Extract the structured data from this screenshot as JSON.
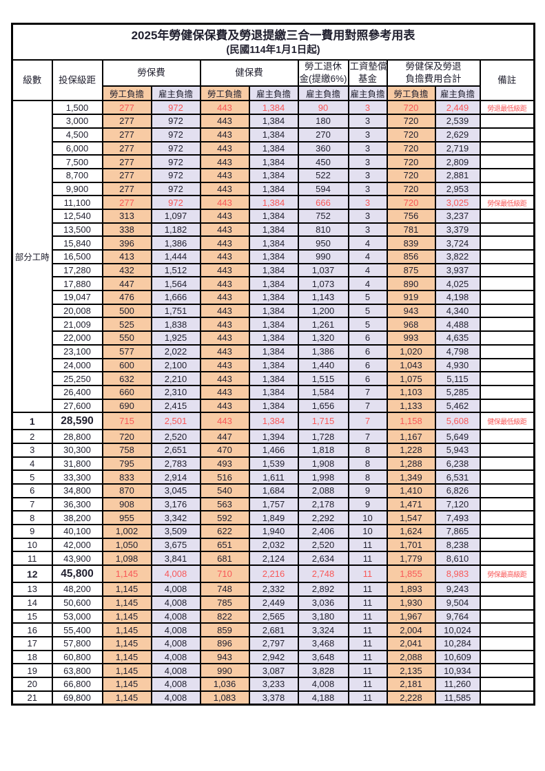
{
  "title": "2025年勞健保保費及勞退提繳三合一費用對照參考用表",
  "subtitle": "(民國114年1月1日起)",
  "colors": {
    "employee_bg": "#f8cba4",
    "employer_bg": "#e3e0f0",
    "red_text": "#f85757",
    "border": "#000000"
  },
  "header": {
    "level": "級數",
    "bracket": "投保級距",
    "labor_insurance": "勞保費",
    "health_insurance": "健保費",
    "pension_line1": "勞工退休",
    "pension_line2": "金(提繳6%)",
    "wage_fund_line1": "工資墊償",
    "wage_fund_line2": "基金",
    "total_line1": "勞健保及勞退",
    "total_line2": "負擔費用合計",
    "remark": "備註",
    "employee": "勞工負擔",
    "employer": "雇主負擔"
  },
  "part_time_label": "部分工時",
  "rows": [
    {
      "l": "",
      "b": "1,500",
      "v": [
        "277",
        "972",
        "443",
        "1,384",
        "90",
        "3",
        "720",
        "2,449"
      ],
      "r": "勞退最低級距",
      "s": "red"
    },
    {
      "l": "",
      "b": "3,000",
      "v": [
        "277",
        "972",
        "443",
        "1,384",
        "180",
        "3",
        "720",
        "2,539"
      ],
      "r": "",
      "s": ""
    },
    {
      "l": "",
      "b": "4,500",
      "v": [
        "277",
        "972",
        "443",
        "1,384",
        "270",
        "3",
        "720",
        "2,629"
      ],
      "r": "",
      "s": ""
    },
    {
      "l": "",
      "b": "6,000",
      "v": [
        "277",
        "972",
        "443",
        "1,384",
        "360",
        "3",
        "720",
        "2,719"
      ],
      "r": "",
      "s": ""
    },
    {
      "l": "",
      "b": "7,500",
      "v": [
        "277",
        "972",
        "443",
        "1,384",
        "450",
        "3",
        "720",
        "2,809"
      ],
      "r": "",
      "s": ""
    },
    {
      "l": "",
      "b": "8,700",
      "v": [
        "277",
        "972",
        "443",
        "1,384",
        "522",
        "3",
        "720",
        "2,881"
      ],
      "r": "",
      "s": ""
    },
    {
      "l": "",
      "b": "9,900",
      "v": [
        "277",
        "972",
        "443",
        "1,384",
        "594",
        "3",
        "720",
        "2,953"
      ],
      "r": "",
      "s": ""
    },
    {
      "l": "",
      "b": "11,100",
      "v": [
        "277",
        "972",
        "443",
        "1,384",
        "666",
        "3",
        "720",
        "3,025"
      ],
      "r": "勞保最低級距",
      "s": "red"
    },
    {
      "l": "",
      "b": "12,540",
      "v": [
        "313",
        "1,097",
        "443",
        "1,384",
        "752",
        "3",
        "756",
        "3,237"
      ],
      "r": "",
      "s": ""
    },
    {
      "l": "",
      "b": "13,500",
      "v": [
        "338",
        "1,182",
        "443",
        "1,384",
        "810",
        "3",
        "781",
        "3,379"
      ],
      "r": "",
      "s": ""
    },
    {
      "l": "",
      "b": "15,840",
      "v": [
        "396",
        "1,386",
        "443",
        "1,384",
        "950",
        "4",
        "839",
        "3,724"
      ],
      "r": "",
      "s": ""
    },
    {
      "l": "",
      "b": "16,500",
      "v": [
        "413",
        "1,444",
        "443",
        "1,384",
        "990",
        "4",
        "856",
        "3,822"
      ],
      "r": "",
      "s": ""
    },
    {
      "l": "",
      "b": "17,280",
      "v": [
        "432",
        "1,512",
        "443",
        "1,384",
        "1,037",
        "4",
        "875",
        "3,937"
      ],
      "r": "",
      "s": ""
    },
    {
      "l": "",
      "b": "17,880",
      "v": [
        "447",
        "1,564",
        "443",
        "1,384",
        "1,073",
        "4",
        "890",
        "4,025"
      ],
      "r": "",
      "s": ""
    },
    {
      "l": "",
      "b": "19,047",
      "v": [
        "476",
        "1,666",
        "443",
        "1,384",
        "1,143",
        "5",
        "919",
        "4,198"
      ],
      "r": "",
      "s": ""
    },
    {
      "l": "",
      "b": "20,008",
      "v": [
        "500",
        "1,751",
        "443",
        "1,384",
        "1,200",
        "5",
        "943",
        "4,340"
      ],
      "r": "",
      "s": ""
    },
    {
      "l": "",
      "b": "21,009",
      "v": [
        "525",
        "1,838",
        "443",
        "1,384",
        "1,261",
        "5",
        "968",
        "4,488"
      ],
      "r": "",
      "s": ""
    },
    {
      "l": "",
      "b": "22,000",
      "v": [
        "550",
        "1,925",
        "443",
        "1,384",
        "1,320",
        "6",
        "993",
        "4,635"
      ],
      "r": "",
      "s": ""
    },
    {
      "l": "",
      "b": "23,100",
      "v": [
        "577",
        "2,022",
        "443",
        "1,384",
        "1,386",
        "6",
        "1,020",
        "4,798"
      ],
      "r": "",
      "s": ""
    },
    {
      "l": "",
      "b": "24,000",
      "v": [
        "600",
        "2,100",
        "443",
        "1,384",
        "1,440",
        "6",
        "1,043",
        "4,930"
      ],
      "r": "",
      "s": ""
    },
    {
      "l": "",
      "b": "25,250",
      "v": [
        "632",
        "2,210",
        "443",
        "1,384",
        "1,515",
        "6",
        "1,075",
        "5,115"
      ],
      "r": "",
      "s": ""
    },
    {
      "l": "",
      "b": "26,400",
      "v": [
        "660",
        "2,310",
        "443",
        "1,384",
        "1,584",
        "7",
        "1,103",
        "5,285"
      ],
      "r": "",
      "s": ""
    },
    {
      "l": "",
      "b": "27,600",
      "v": [
        "690",
        "2,415",
        "443",
        "1,384",
        "1,656",
        "7",
        "1,133",
        "5,462"
      ],
      "r": "",
      "s": ""
    },
    {
      "l": "1",
      "b": "28,590",
      "v": [
        "715",
        "2,501",
        "443",
        "1,384",
        "1,715",
        "7",
        "1,158",
        "5,608"
      ],
      "r": "健保最低級距",
      "s": "red boldrow"
    },
    {
      "l": "2",
      "b": "28,800",
      "v": [
        "720",
        "2,520",
        "447",
        "1,394",
        "1,728",
        "7",
        "1,167",
        "5,649"
      ],
      "r": "",
      "s": ""
    },
    {
      "l": "3",
      "b": "30,300",
      "v": [
        "758",
        "2,651",
        "470",
        "1,466",
        "1,818",
        "8",
        "1,228",
        "5,943"
      ],
      "r": "",
      "s": ""
    },
    {
      "l": "4",
      "b": "31,800",
      "v": [
        "795",
        "2,783",
        "493",
        "1,539",
        "1,908",
        "8",
        "1,288",
        "6,238"
      ],
      "r": "",
      "s": ""
    },
    {
      "l": "5",
      "b": "33,300",
      "v": [
        "833",
        "2,914",
        "516",
        "1,611",
        "1,998",
        "8",
        "1,349",
        "6,531"
      ],
      "r": "",
      "s": ""
    },
    {
      "l": "6",
      "b": "34,800",
      "v": [
        "870",
        "3,045",
        "540",
        "1,684",
        "2,088",
        "9",
        "1,410",
        "6,826"
      ],
      "r": "",
      "s": ""
    },
    {
      "l": "7",
      "b": "36,300",
      "v": [
        "908",
        "3,176",
        "563",
        "1,757",
        "2,178",
        "9",
        "1,471",
        "7,120"
      ],
      "r": "",
      "s": ""
    },
    {
      "l": "8",
      "b": "38,200",
      "v": [
        "955",
        "3,342",
        "592",
        "1,849",
        "2,292",
        "10",
        "1,547",
        "7,493"
      ],
      "r": "",
      "s": ""
    },
    {
      "l": "9",
      "b": "40,100",
      "v": [
        "1,002",
        "3,509",
        "622",
        "1,940",
        "2,406",
        "10",
        "1,624",
        "7,865"
      ],
      "r": "",
      "s": ""
    },
    {
      "l": "10",
      "b": "42,000",
      "v": [
        "1,050",
        "3,675",
        "651",
        "2,032",
        "2,520",
        "11",
        "1,701",
        "8,238"
      ],
      "r": "",
      "s": ""
    },
    {
      "l": "11",
      "b": "43,900",
      "v": [
        "1,098",
        "3,841",
        "681",
        "2,124",
        "2,634",
        "11",
        "1,779",
        "8,610"
      ],
      "r": "",
      "s": ""
    },
    {
      "l": "12",
      "b": "45,800",
      "v": [
        "1,145",
        "4,008",
        "710",
        "2,216",
        "2,748",
        "11",
        "1,855",
        "8,983"
      ],
      "r": "勞保最高級距",
      "s": "red boldrow"
    },
    {
      "l": "13",
      "b": "48,200",
      "v": [
        "1,145",
        "4,008",
        "748",
        "2,332",
        "2,892",
        "11",
        "1,893",
        "9,243"
      ],
      "r": "",
      "s": ""
    },
    {
      "l": "14",
      "b": "50,600",
      "v": [
        "1,145",
        "4,008",
        "785",
        "2,449",
        "3,036",
        "11",
        "1,930",
        "9,504"
      ],
      "r": "",
      "s": ""
    },
    {
      "l": "15",
      "b": "53,000",
      "v": [
        "1,145",
        "4,008",
        "822",
        "2,565",
        "3,180",
        "11",
        "1,967",
        "9,764"
      ],
      "r": "",
      "s": ""
    },
    {
      "l": "16",
      "b": "55,400",
      "v": [
        "1,145",
        "4,008",
        "859",
        "2,681",
        "3,324",
        "11",
        "2,004",
        "10,024"
      ],
      "r": "",
      "s": ""
    },
    {
      "l": "17",
      "b": "57,800",
      "v": [
        "1,145",
        "4,008",
        "896",
        "2,797",
        "3,468",
        "11",
        "2,041",
        "10,284"
      ],
      "r": "",
      "s": ""
    },
    {
      "l": "18",
      "b": "60,800",
      "v": [
        "1,145",
        "4,008",
        "943",
        "2,942",
        "3,648",
        "11",
        "2,088",
        "10,609"
      ],
      "r": "",
      "s": ""
    },
    {
      "l": "19",
      "b": "63,800",
      "v": [
        "1,145",
        "4,008",
        "990",
        "3,087",
        "3,828",
        "11",
        "2,135",
        "10,934"
      ],
      "r": "",
      "s": ""
    },
    {
      "l": "20",
      "b": "66,800",
      "v": [
        "1,145",
        "4,008",
        "1,036",
        "3,233",
        "4,008",
        "11",
        "2,181",
        "11,260"
      ],
      "r": "",
      "s": ""
    },
    {
      "l": "21",
      "b": "69,800",
      "v": [
        "1,145",
        "4,008",
        "1,083",
        "3,378",
        "4,188",
        "11",
        "2,228",
        "11,585"
      ],
      "r": "",
      "s": ""
    }
  ]
}
